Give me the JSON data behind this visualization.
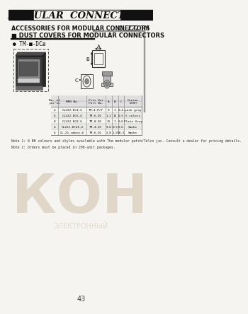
{
  "title": "MODULAR  CONNECTORS",
  "catalog_num": "CL 222 TM",
  "subtitle1": "ACCESSORIES FOR MODULAR CONNECTORS",
  "subtitle2": "■ DUST COVERS FOR MODULAR CONNECTORS",
  "part_label": "● TM-■-DCæ",
  "table_rows": [
    [
      "4",
      "CL222-DC4-6",
      "TM-4-P/F",
      "9",
      "1",
      "0.4",
      "push gray"
    ],
    [
      "6",
      "CL222-DC6-6",
      "TM-6-DC",
      "1.2",
      "15",
      "0.5",
      "5 colors"
    ],
    [
      "8",
      "CL222-DC8-6",
      "TM-8-DC",
      "11",
      "1",
      "0.6",
      "Plain Gray"
    ],
    [
      "4",
      "CL222-DC4S-6",
      "TM-4-DC",
      "9.0",
      "0.5",
      "0.6",
      "Smoke"
    ],
    [
      "6",
      "CL-21-smkey-6",
      "TM-6-DC",
      "2.8",
      "1.9",
      "18.5",
      "Smoke"
    ]
  ],
  "note1": "Note 1: 6 BH colours and styles available with The modular patch/Telco jac. Consult a dealer for pricing details.",
  "note2": "Note 2: Orders must be placed in 200-unit packages.",
  "page_num": "43",
  "bg_color": "#f5f4f0",
  "header_bar_color": "#111111",
  "watermark_color": "#c0aa88",
  "watermark_text": "КОН"
}
